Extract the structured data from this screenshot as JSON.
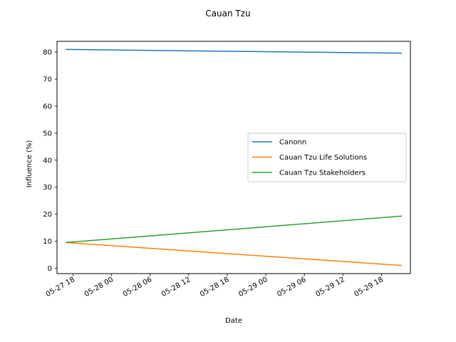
{
  "chart_data": {
    "type": "line",
    "title": "Cauan Tzu",
    "xlabel": "Date",
    "ylabel": "Influence (%)",
    "ylim": [
      -2.0,
      84.0
    ],
    "xlim": [
      "2020-05-27 15:30",
      "2020-05-29 22:30"
    ],
    "yticks": [
      0,
      10,
      20,
      30,
      40,
      50,
      60,
      70,
      80
    ],
    "xticks": [
      {
        "x": "2020-05-27 18:00",
        "label": "05-27 18"
      },
      {
        "x": "2020-05-28 00:00",
        "label": "05-28 00"
      },
      {
        "x": "2020-05-28 06:00",
        "label": "05-28 06"
      },
      {
        "x": "2020-05-28 12:00",
        "label": "05-28 12"
      },
      {
        "x": "2020-05-28 18:00",
        "label": "05-28 18"
      },
      {
        "x": "2020-05-29 00:00",
        "label": "05-29 00"
      },
      {
        "x": "2020-05-29 06:00",
        "label": "05-29 06"
      },
      {
        "x": "2020-05-29 12:00",
        "label": "05-29 12"
      },
      {
        "x": "2020-05-29 18:00",
        "label": "05-29 18"
      }
    ],
    "x": [
      "2020-05-27 16:50",
      "2020-05-29 21:10"
    ],
    "series": [
      {
        "name": "Canonn",
        "color": "#1f77b4",
        "values": [
          81.0,
          79.6
        ]
      },
      {
        "name": "Cauan Tzu Life Solutions",
        "color": "#ff7f0e",
        "values": [
          9.5,
          1.0
        ]
      },
      {
        "name": "Cauan Tzu Stakeholders",
        "color": "#2ca02c",
        "values": [
          9.5,
          19.3
        ]
      }
    ],
    "legend": "center-right",
    "grid": false
  }
}
